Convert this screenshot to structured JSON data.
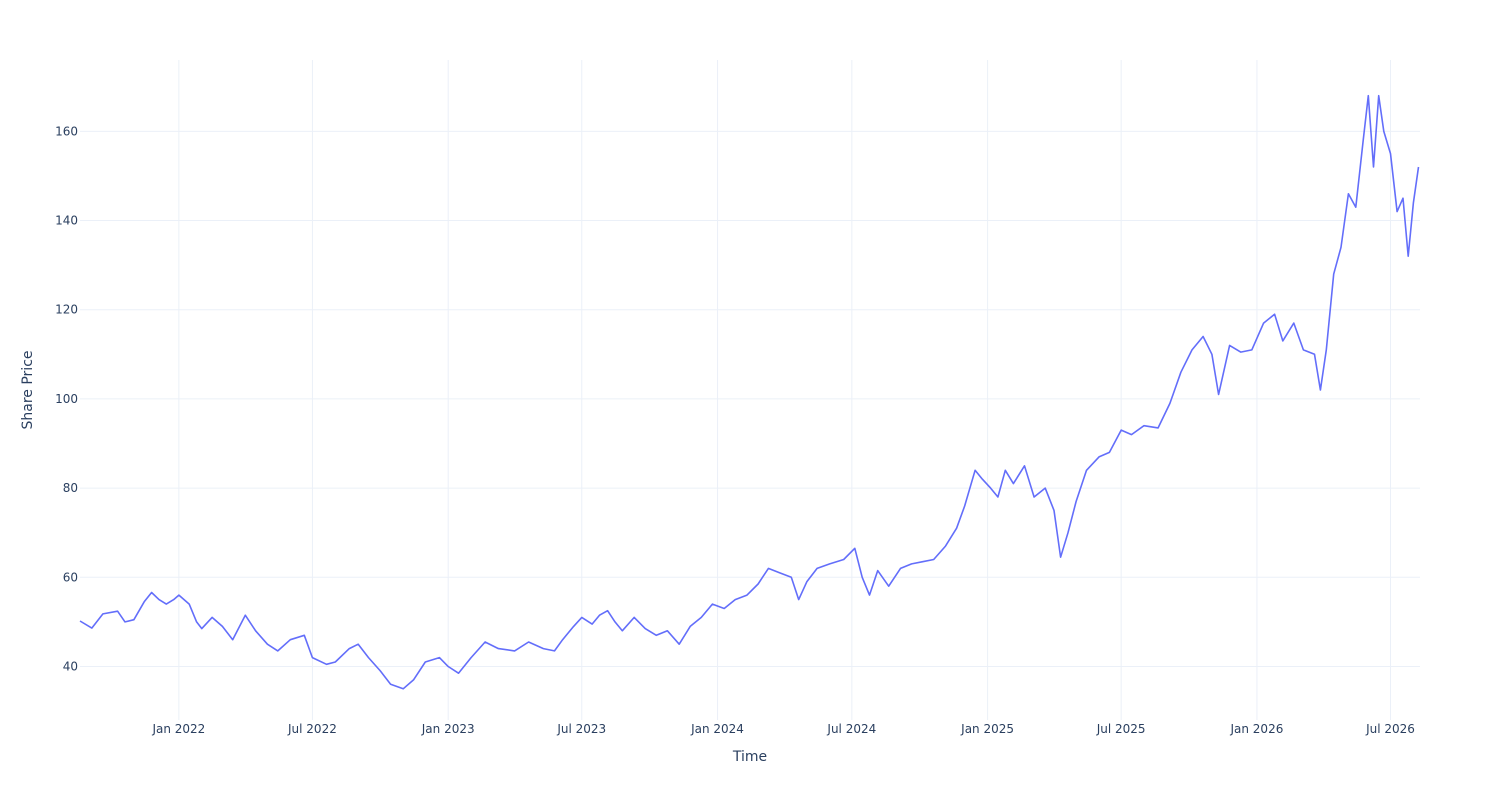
{
  "chart_data": {
    "type": "line",
    "title": "",
    "xlabel": "Time",
    "ylabel": "Share Price",
    "grid": true,
    "legend": "none",
    "line_color": "#636efa",
    "xlim": [
      "2021-08-20",
      "2026-08-10"
    ],
    "ylim": [
      28,
      176
    ],
    "x_ticks": [
      {
        "date": "2022-01-01",
        "label": "Jan 2022"
      },
      {
        "date": "2022-07-01",
        "label": "Jul 2022"
      },
      {
        "date": "2023-01-01",
        "label": "Jan 2023"
      },
      {
        "date": "2023-07-01",
        "label": "Jul 2023"
      },
      {
        "date": "2024-01-01",
        "label": "Jan 2024"
      },
      {
        "date": "2024-07-01",
        "label": "Jul 2024"
      },
      {
        "date": "2025-01-01",
        "label": "Jan 2025"
      },
      {
        "date": "2025-07-01",
        "label": "Jul 2025"
      },
      {
        "date": "2026-01-01",
        "label": "Jan 2026"
      },
      {
        "date": "2026-07-01",
        "label": "Jul 2026"
      }
    ],
    "y_ticks": [
      {
        "value": 40,
        "label": "40"
      },
      {
        "value": 60,
        "label": "60"
      },
      {
        "value": 80,
        "label": "80"
      },
      {
        "value": 100,
        "label": "100"
      },
      {
        "value": 120,
        "label": "120"
      },
      {
        "value": 140,
        "label": "140"
      },
      {
        "value": 160,
        "label": "160"
      }
    ],
    "series": [
      {
        "points": [
          [
            "2021-08-20",
            50.2
          ],
          [
            "2021-09-05",
            48.6
          ],
          [
            "2021-09-20",
            51.8
          ],
          [
            "2021-10-10",
            52.4
          ],
          [
            "2021-10-20",
            50.0
          ],
          [
            "2021-11-01",
            50.5
          ],
          [
            "2021-11-15",
            54.5
          ],
          [
            "2021-11-25",
            56.6
          ],
          [
            "2021-12-05",
            55.0
          ],
          [
            "2021-12-15",
            54.0
          ],
          [
            "2021-12-25",
            55.0
          ],
          [
            "2022-01-01",
            56.0
          ],
          [
            "2022-01-15",
            54.0
          ],
          [
            "2022-01-25",
            50.0
          ],
          [
            "2022-02-01",
            48.5
          ],
          [
            "2022-02-15",
            51.0
          ],
          [
            "2022-03-01",
            49.0
          ],
          [
            "2022-03-15",
            46.0
          ],
          [
            "2022-04-01",
            51.5
          ],
          [
            "2022-04-15",
            48.0
          ],
          [
            "2022-05-01",
            45.0
          ],
          [
            "2022-05-15",
            43.5
          ],
          [
            "2022-06-01",
            46.0
          ],
          [
            "2022-06-20",
            47.0
          ],
          [
            "2022-07-01",
            42.0
          ],
          [
            "2022-07-20",
            40.5
          ],
          [
            "2022-08-01",
            41.0
          ],
          [
            "2022-08-20",
            44.0
          ],
          [
            "2022-09-01",
            45.0
          ],
          [
            "2022-09-15",
            42.0
          ],
          [
            "2022-10-01",
            39.0
          ],
          [
            "2022-10-15",
            36.0
          ],
          [
            "2022-11-01",
            35.0
          ],
          [
            "2022-11-15",
            37.0
          ],
          [
            "2022-12-01",
            41.0
          ],
          [
            "2022-12-20",
            42.0
          ],
          [
            "2023-01-01",
            40.0
          ],
          [
            "2023-01-15",
            38.5
          ],
          [
            "2023-02-01",
            42.0
          ],
          [
            "2023-02-20",
            45.5
          ],
          [
            "2023-03-10",
            44.0
          ],
          [
            "2023-04-01",
            43.5
          ],
          [
            "2023-04-20",
            45.5
          ],
          [
            "2023-05-10",
            44.0
          ],
          [
            "2023-05-25",
            43.5
          ],
          [
            "2023-06-05",
            46.0
          ],
          [
            "2023-06-20",
            49.0
          ],
          [
            "2023-07-01",
            51.0
          ],
          [
            "2023-07-15",
            49.5
          ],
          [
            "2023-07-25",
            51.5
          ],
          [
            "2023-08-05",
            52.5
          ],
          [
            "2023-08-15",
            50.0
          ],
          [
            "2023-08-25",
            48.0
          ],
          [
            "2023-09-10",
            51.0
          ],
          [
            "2023-09-25",
            48.5
          ],
          [
            "2023-10-10",
            47.0
          ],
          [
            "2023-10-25",
            48.0
          ],
          [
            "2023-11-10",
            45.0
          ],
          [
            "2023-11-25",
            49.0
          ],
          [
            "2023-12-10",
            51.0
          ],
          [
            "2023-12-25",
            54.0
          ],
          [
            "2024-01-10",
            53.0
          ],
          [
            "2024-01-25",
            55.0
          ],
          [
            "2024-02-10",
            56.0
          ],
          [
            "2024-02-25",
            58.5
          ],
          [
            "2024-03-10",
            62.0
          ],
          [
            "2024-03-25",
            61.0
          ],
          [
            "2024-04-10",
            60.0
          ],
          [
            "2024-04-20",
            55.0
          ],
          [
            "2024-05-01",
            59.0
          ],
          [
            "2024-05-15",
            62.0
          ],
          [
            "2024-06-01",
            63.0
          ],
          [
            "2024-06-20",
            64.0
          ],
          [
            "2024-07-05",
            66.5
          ],
          [
            "2024-07-15",
            60.0
          ],
          [
            "2024-07-25",
            56.0
          ],
          [
            "2024-08-05",
            61.5
          ],
          [
            "2024-08-20",
            58.0
          ],
          [
            "2024-09-05",
            62.0
          ],
          [
            "2024-09-20",
            63.0
          ],
          [
            "2024-10-05",
            63.5
          ],
          [
            "2024-10-20",
            64.0
          ],
          [
            "2024-11-05",
            67.0
          ],
          [
            "2024-11-20",
            71.0
          ],
          [
            "2024-12-01",
            76.0
          ],
          [
            "2024-12-15",
            84.0
          ],
          [
            "2024-12-25",
            82.0
          ],
          [
            "2025-01-05",
            80.0
          ],
          [
            "2025-01-15",
            78.0
          ],
          [
            "2025-01-25",
            84.0
          ],
          [
            "2025-02-05",
            81.0
          ],
          [
            "2025-02-20",
            85.0
          ],
          [
            "2025-03-05",
            78.0
          ],
          [
            "2025-03-20",
            80.0
          ],
          [
            "2025-04-01",
            75.0
          ],
          [
            "2025-04-10",
            64.5
          ],
          [
            "2025-04-20",
            70.0
          ],
          [
            "2025-05-01",
            77.0
          ],
          [
            "2025-05-15",
            84.0
          ],
          [
            "2025-06-01",
            87.0
          ],
          [
            "2025-06-15",
            88.0
          ],
          [
            "2025-07-01",
            93.0
          ],
          [
            "2025-07-15",
            92.0
          ],
          [
            "2025-08-01",
            94.0
          ],
          [
            "2025-08-20",
            93.5
          ],
          [
            "2025-09-05",
            99.0
          ],
          [
            "2025-09-20",
            106.0
          ],
          [
            "2025-10-05",
            111.0
          ],
          [
            "2025-10-20",
            114.0
          ],
          [
            "2025-11-01",
            110.0
          ],
          [
            "2025-11-10",
            101.0
          ],
          [
            "2025-11-25",
            112.0
          ],
          [
            "2025-12-10",
            110.5
          ],
          [
            "2025-12-25",
            111.0
          ],
          [
            "2026-01-10",
            117.0
          ],
          [
            "2026-01-25",
            119.0
          ],
          [
            "2026-02-05",
            113.0
          ],
          [
            "2026-02-20",
            117.0
          ],
          [
            "2026-03-05",
            111.0
          ],
          [
            "2026-03-20",
            110.0
          ],
          [
            "2026-03-28",
            102.0
          ],
          [
            "2026-04-05",
            111.0
          ],
          [
            "2026-04-15",
            128.0
          ],
          [
            "2026-04-25",
            134.0
          ],
          [
            "2026-05-05",
            146.0
          ],
          [
            "2026-05-15",
            143.0
          ],
          [
            "2026-05-25",
            158.0
          ],
          [
            "2026-06-01",
            168.0
          ],
          [
            "2026-06-08",
            152.0
          ],
          [
            "2026-06-15",
            168.0
          ],
          [
            "2026-06-22",
            160.0
          ],
          [
            "2026-07-01",
            155.0
          ],
          [
            "2026-07-10",
            142.0
          ],
          [
            "2026-07-18",
            145.0
          ],
          [
            "2026-07-25",
            132.0
          ],
          [
            "2026-08-01",
            144.0
          ],
          [
            "2026-08-08",
            152.0
          ]
        ]
      }
    ]
  }
}
